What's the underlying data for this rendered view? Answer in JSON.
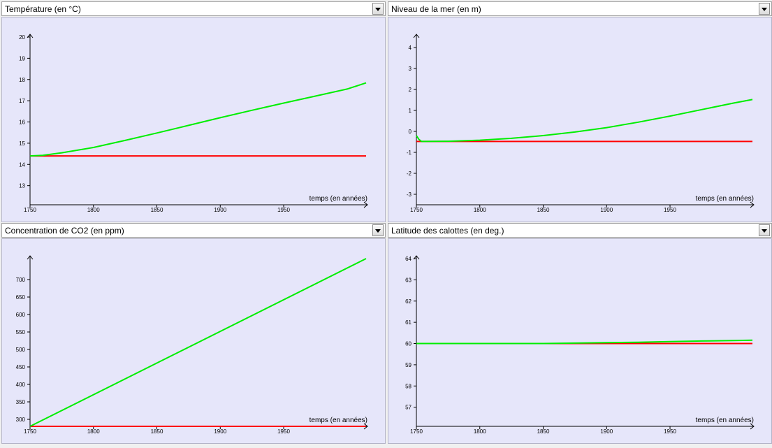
{
  "colors": {
    "plot_bg": "#e6e6fa",
    "reference_series": "#ff0000",
    "simulation_series": "#00ee00",
    "axis": "#000000"
  },
  "charts": [
    {
      "title": "Température (en °C)"
    },
    {
      "title": "Niveau de la mer (en m)"
    },
    {
      "title": "Concentration de CO2 (en ppm)"
    },
    {
      "title": "Latitude des calottes (en deg.)"
    }
  ],
  "chart_data": [
    {
      "type": "line",
      "title": "Température (en °C)",
      "xlabel": "temps (en années)",
      "xticks": [
        1750,
        1800,
        1850,
        1900,
        1950
      ],
      "yticks": [
        13,
        14,
        15,
        16,
        17,
        18,
        19,
        20
      ],
      "xlim": [
        1750,
        2015
      ],
      "ylim": [
        12.1,
        20.0
      ],
      "grid": false,
      "series": [
        {
          "color": "#ff0000",
          "x": [
            1750,
            2015
          ],
          "y": [
            14.4,
            14.4
          ]
        },
        {
          "color": "#00ee00",
          "x": [
            1750,
            1760,
            1775,
            1800,
            1825,
            1850,
            1875,
            1900,
            1925,
            1950,
            1975,
            2000,
            2015
          ],
          "y": [
            14.4,
            14.43,
            14.55,
            14.8,
            15.13,
            15.48,
            15.84,
            16.2,
            16.55,
            16.89,
            17.22,
            17.55,
            17.84
          ]
        }
      ]
    },
    {
      "type": "line",
      "title": "Niveau de la mer (en m)",
      "xlabel": "temps (en années)",
      "xticks": [
        1750,
        1800,
        1850,
        1900,
        1950
      ],
      "yticks": [
        -3,
        -2,
        -1,
        0,
        1,
        2,
        3,
        4
      ],
      "xlim": [
        1750,
        2015
      ],
      "ylim": [
        -3.5,
        4.5
      ],
      "grid": false,
      "series": [
        {
          "color": "#ff0000",
          "x": [
            1750,
            2015
          ],
          "y": [
            -0.48,
            -0.48
          ]
        },
        {
          "color": "#00ee00",
          "x": [
            1750,
            1752,
            1754,
            1775,
            1800,
            1825,
            1850,
            1875,
            1900,
            1925,
            1950,
            1975,
            2000,
            2015
          ],
          "y": [
            -0.2,
            -0.38,
            -0.48,
            -0.47,
            -0.42,
            -0.33,
            -0.2,
            -0.03,
            0.18,
            0.44,
            0.73,
            1.04,
            1.35,
            1.52
          ]
        }
      ]
    },
    {
      "type": "line",
      "title": "Concentration de CO2 (en ppm)",
      "xlabel": "temps (en années)",
      "xticks": [
        1750,
        1800,
        1850,
        1900,
        1950
      ],
      "yticks": [
        300,
        350,
        400,
        450,
        500,
        550,
        600,
        650,
        700
      ],
      "xlim": [
        1750,
        2015
      ],
      "ylim": [
        280,
        760
      ],
      "grid": false,
      "series": [
        {
          "color": "#ff0000",
          "x": [
            1750,
            2015
          ],
          "y": [
            280,
            280
          ]
        },
        {
          "color": "#00ee00",
          "x": [
            1750,
            2015
          ],
          "y": [
            280,
            760
          ]
        }
      ]
    },
    {
      "type": "line",
      "title": "Latitude des calottes (en deg.)",
      "xlabel": "temps (en années)",
      "xticks": [
        1750,
        1800,
        1850,
        1900,
        1950
      ],
      "yticks": [
        57,
        58,
        59,
        60,
        61,
        62,
        63,
        64
      ],
      "xlim": [
        1750,
        2015
      ],
      "ylim": [
        56.1,
        64.0
      ],
      "grid": false,
      "series": [
        {
          "color": "#ff0000",
          "x": [
            1750,
            2015
          ],
          "y": [
            60.0,
            60.0
          ]
        },
        {
          "color": "#00ee00",
          "x": [
            1750,
            1800,
            1850,
            1875,
            1900,
            1925,
            1950,
            1975,
            2000,
            2015
          ],
          "y": [
            60.0,
            60.0,
            60.0,
            60.02,
            60.04,
            60.06,
            60.09,
            60.12,
            60.14,
            60.16
          ]
        }
      ]
    }
  ]
}
